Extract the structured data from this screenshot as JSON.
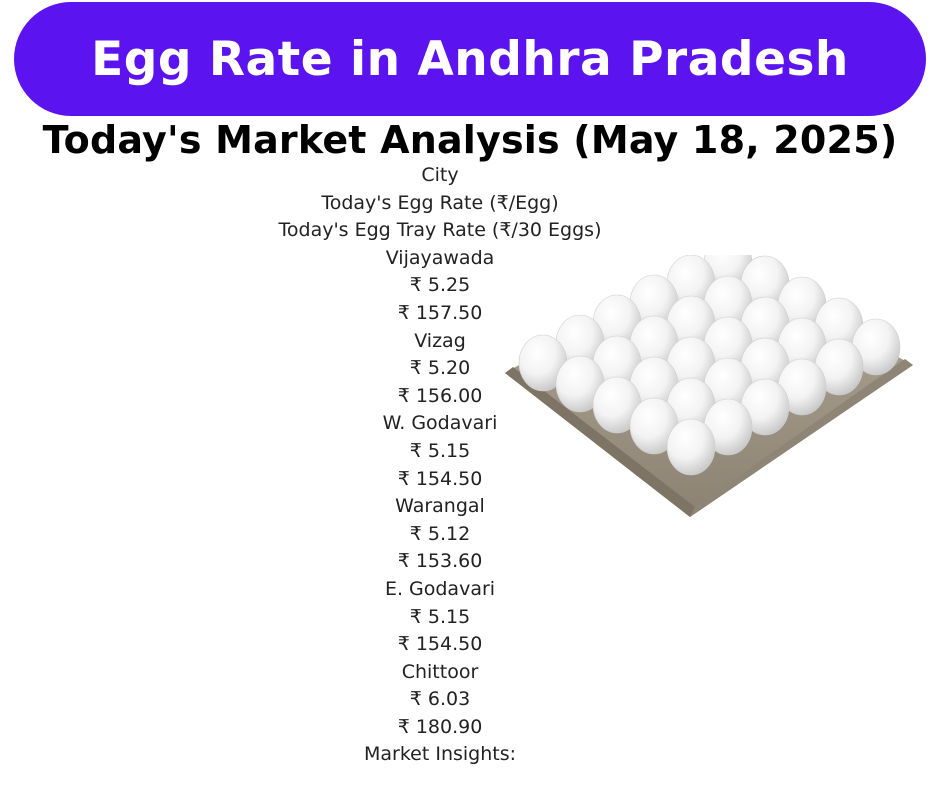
{
  "header": {
    "title": "Egg Rate in Andhra Pradesh",
    "subtitle": "Today's Market Analysis (May 18, 2025)"
  },
  "table": {
    "headers": [
      "City",
      "Today's Egg Rate (₹/Egg)",
      "Today's Egg Tray Rate (₹/30 Eggs)"
    ],
    "rows": [
      {
        "city": "Vijayawada",
        "egg_rate": "₹ 5.25",
        "tray_rate": "₹ 157.50"
      },
      {
        "city": "Vizag",
        "egg_rate": "₹ 5.20",
        "tray_rate": "₹ 156.00"
      },
      {
        "city": "W. Godavari",
        "egg_rate": "₹ 5.15",
        "tray_rate": "₹ 154.50"
      },
      {
        "city": "Warangal",
        "egg_rate": "₹ 5.12",
        "tray_rate": "₹ 153.60"
      },
      {
        "city": "E. Godavari",
        "egg_rate": "₹ 5.15",
        "tray_rate": "₹ 154.50"
      },
      {
        "city": "Chittoor",
        "egg_rate": "₹ 6.03",
        "tray_rate": "₹ 180.90"
      }
    ]
  },
  "insights": {
    "label": "Market Insights:"
  },
  "colors": {
    "banner": "#5b14ef",
    "banner_text": "#ffffff",
    "text": "#222222"
  },
  "image": {
    "icon": "egg-tray-image"
  }
}
